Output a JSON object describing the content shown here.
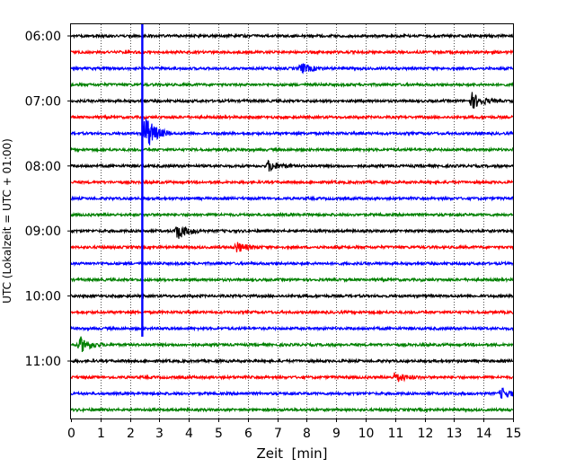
{
  "chart_data": {
    "type": "line",
    "title": "",
    "xlabel": "Zeit  [min]",
    "ylabel": "UTC (Lokalzeit = UTC + 01:00)",
    "xlim": [
      0,
      15
    ],
    "x_ticks": [
      "0",
      "1",
      "2",
      "3",
      "4",
      "5",
      "6",
      "7",
      "8",
      "9",
      "10",
      "11",
      "12",
      "13",
      "14",
      "15"
    ],
    "y_ticks": [
      "06:00",
      "07:00",
      "08:00",
      "09:00",
      "10:00",
      "11:00"
    ],
    "grid": "vertical dotted",
    "trace_interval_min": 15,
    "first_trace": "06:00",
    "trace_colors": [
      "#000000",
      "#ff0000",
      "#0000ff",
      "#008000"
    ],
    "trace_count": 24,
    "events": [
      {
        "trace": "06:30",
        "minute": 7.8,
        "amplitude": "small"
      },
      {
        "trace": "07:00",
        "minute": 13.6,
        "amplitude": "medium"
      },
      {
        "trace": "07:30",
        "minute": 2.5,
        "amplitude": "large"
      },
      {
        "trace": "08:00",
        "minute": 6.7,
        "amplitude": "small"
      },
      {
        "trace": "09:00",
        "minute": 3.6,
        "amplitude": "medium"
      },
      {
        "trace": "09:15",
        "minute": 5.6,
        "amplitude": "small"
      },
      {
        "trace": "10:45",
        "minute": 0.3,
        "amplitude": "medium"
      },
      {
        "trace": "11:15",
        "minute": 11.0,
        "amplitude": "small"
      },
      {
        "trace": "11:30",
        "minute": 14.6,
        "amplitude": "small"
      }
    ],
    "spike_minute": 2.42,
    "spike_color": "#0000ff"
  }
}
